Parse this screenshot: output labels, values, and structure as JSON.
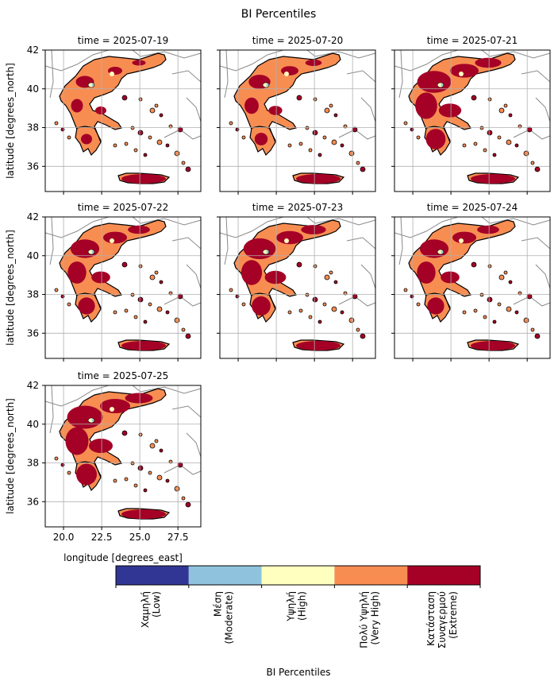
{
  "figure": {
    "title": "BI Percentiles",
    "ylabel": "latitude [degrees_north]",
    "xlabel": "longitude [degrees_east]",
    "xticks": [
      "20.0",
      "22.5",
      "25.0",
      "27.5"
    ],
    "yticks": [
      "42",
      "40",
      "38",
      "36"
    ],
    "panels": [
      {
        "title": "time = 2025-07-19",
        "red_share": 0.25
      },
      {
        "title": "time = 2025-07-20",
        "red_share": 0.35
      },
      {
        "title": "time = 2025-07-21",
        "red_share": 0.7
      },
      {
        "title": "time = 2025-07-22",
        "red_share": 0.55
      },
      {
        "title": "time = 2025-07-23",
        "red_share": 0.65
      },
      {
        "title": "time = 2025-07-24",
        "red_share": 0.55
      },
      {
        "title": "time = 2025-07-25",
        "red_share": 0.75
      }
    ]
  },
  "colorbar": {
    "label": "BI Percentiles",
    "categories": [
      {
        "line1": "Χαμηλή",
        "line2": "(Low)",
        "color": "#313695"
      },
      {
        "line1": "Μέση",
        "line2": "(Moderate)",
        "color": "#8fc3dd"
      },
      {
        "line1": "Υψηλή",
        "line2": "(High)",
        "color": "#ffffbf"
      },
      {
        "line1": "Πολύ Υψηλή",
        "line2": "(Very High)",
        "color": "#f88d52"
      },
      {
        "line1": "Κατάσταση",
        "line2": "Συναγερμού",
        "line3": "(Extreme)",
        "color": "#a50026"
      }
    ]
  }
}
